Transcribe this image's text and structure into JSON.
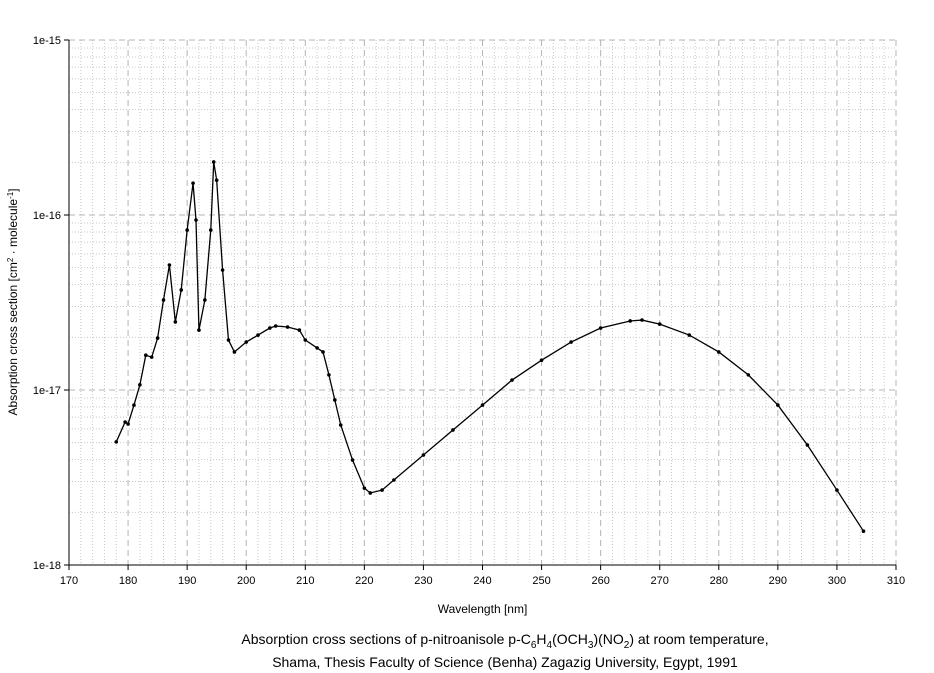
{
  "chart_data": {
    "type": "line",
    "title": "",
    "xlabel": "Wavelength [nm]",
    "ylabel": "Absorption cross section [cm",
    "ylabel_sup1": "2",
    "ylabel_mid": " · molecule",
    "ylabel_sup2": "-1",
    "ylabel_end": "]",
    "xlim": [
      170,
      310
    ],
    "ylim": [
      1e-18,
      1e-15
    ],
    "yscale": "log",
    "grid": true,
    "xticks": [
      "170",
      "180",
      "190",
      "200",
      "210",
      "220",
      "230",
      "240",
      "250",
      "260",
      "270",
      "280",
      "290",
      "300",
      "310"
    ],
    "yticks": [
      "1e-15",
      "1e-16",
      "1e-17",
      "1e-18"
    ],
    "series": [
      {
        "name": "p-nitroanisole",
        "color": "#000000",
        "x": [
          178,
          179.5,
          180,
          181,
          182,
          183,
          184,
          185,
          186,
          187,
          188,
          189,
          190,
          191,
          191.5,
          192,
          193,
          194,
          194.5,
          195,
          196,
          197,
          198,
          200,
          202,
          204,
          205,
          207,
          209,
          210,
          212,
          213,
          214,
          215,
          216,
          218,
          220,
          221,
          223,
          225,
          230,
          235,
          240,
          245,
          250,
          255,
          260,
          265,
          267,
          270,
          275,
          280,
          285,
          290,
          295,
          300,
          304.5
        ],
        "y": [
          5.05e-18,
          6.56e-18,
          6.39e-18,
          8.2e-18,
          1.07e-17,
          1.58e-17,
          1.54e-17,
          1.98e-17,
          3.27e-17,
          5.18e-17,
          2.45e-17,
          3.73e-17,
          8.2e-17,
          1.52e-16,
          9.36e-17,
          2.2e-17,
          3.27e-17,
          8.2e-17,
          2.01e-16,
          1.58e-16,
          4.85e-17,
          1.93e-17,
          1.65e-17,
          1.88e-17,
          2.06e-17,
          2.26e-17,
          2.32e-17,
          2.29e-17,
          2.2e-17,
          1.93e-17,
          1.74e-17,
          1.65e-17,
          1.22e-17,
          8.77e-18,
          6.31e-18,
          3.98e-18,
          2.75e-18,
          2.58e-18,
          2.68e-18,
          3.06e-18,
          4.25e-18,
          5.91e-18,
          8.2e-18,
          1.14e-17,
          1.48e-17,
          1.88e-17,
          2.26e-17,
          2.48e-17,
          2.51e-17,
          2.38e-17,
          2.06e-17,
          1.65e-17,
          1.22e-17,
          8.2e-18,
          4.85e-18,
          2.68e-18,
          1.56e-18
        ]
      }
    ]
  },
  "caption": {
    "line1_a": "Absorption cross sections of p-nitroanisole p-C",
    "s1": "6",
    "b": "H",
    "s2": "4",
    "c": "(OCH",
    "s3": "3",
    "d": ")(NO",
    "s4": "2",
    "e": ") at room temperature,",
    "line2": "Shama, Thesis Faculty of Science (Benha) Zagazig University, Egypt, 1991"
  }
}
